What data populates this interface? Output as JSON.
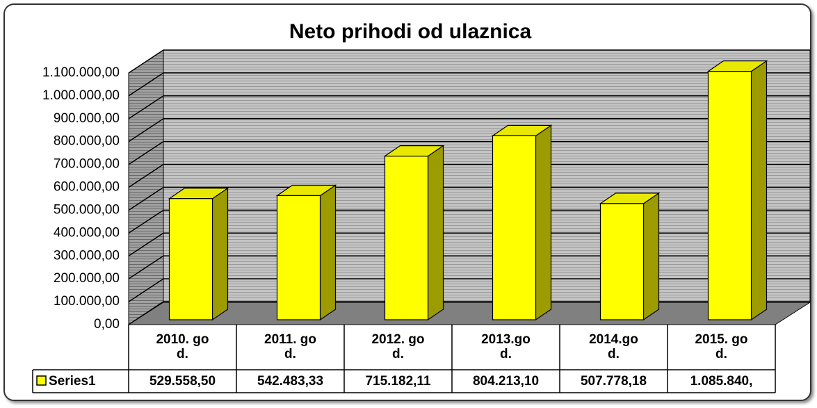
{
  "chart_data": {
    "type": "bar",
    "title": "Neto prihodi od ulaznica",
    "categories": [
      "2010. god.",
      "2011. god.",
      "2012. god.",
      "2013.god.",
      "2014.god.",
      "2015. god."
    ],
    "series": [
      {
        "name": "Series1",
        "color": "#ffff00",
        "values": [
          529558.5,
          542483.33,
          715182.11,
          804213.1,
          507778.18,
          1085840
        ],
        "value_labels": [
          "529.558,50",
          "542.483,33",
          "715.182,11",
          "804.213,10",
          "507.778,18",
          "1.085.840,"
        ]
      }
    ],
    "ylim": [
      0,
      1100000
    ],
    "yticks": [
      {
        "value": 0,
        "label": "0,00"
      },
      {
        "value": 100000,
        "label": "100.000,00"
      },
      {
        "value": 200000,
        "label": "200.000,00"
      },
      {
        "value": 300000,
        "label": "300.000,00"
      },
      {
        "value": 400000,
        "label": "400.000,00"
      },
      {
        "value": 500000,
        "label": "500.000,00"
      },
      {
        "value": 600000,
        "label": "600.000,00"
      },
      {
        "value": 700000,
        "label": "700.000,00"
      },
      {
        "value": 800000,
        "label": "800.000,00"
      },
      {
        "value": 900000,
        "label": "900.000,00"
      },
      {
        "value": 1000000,
        "label": "1.000.000,00"
      },
      {
        "value": 1100000,
        "label": "1.100.000,00"
      }
    ],
    "grid": true
  }
}
